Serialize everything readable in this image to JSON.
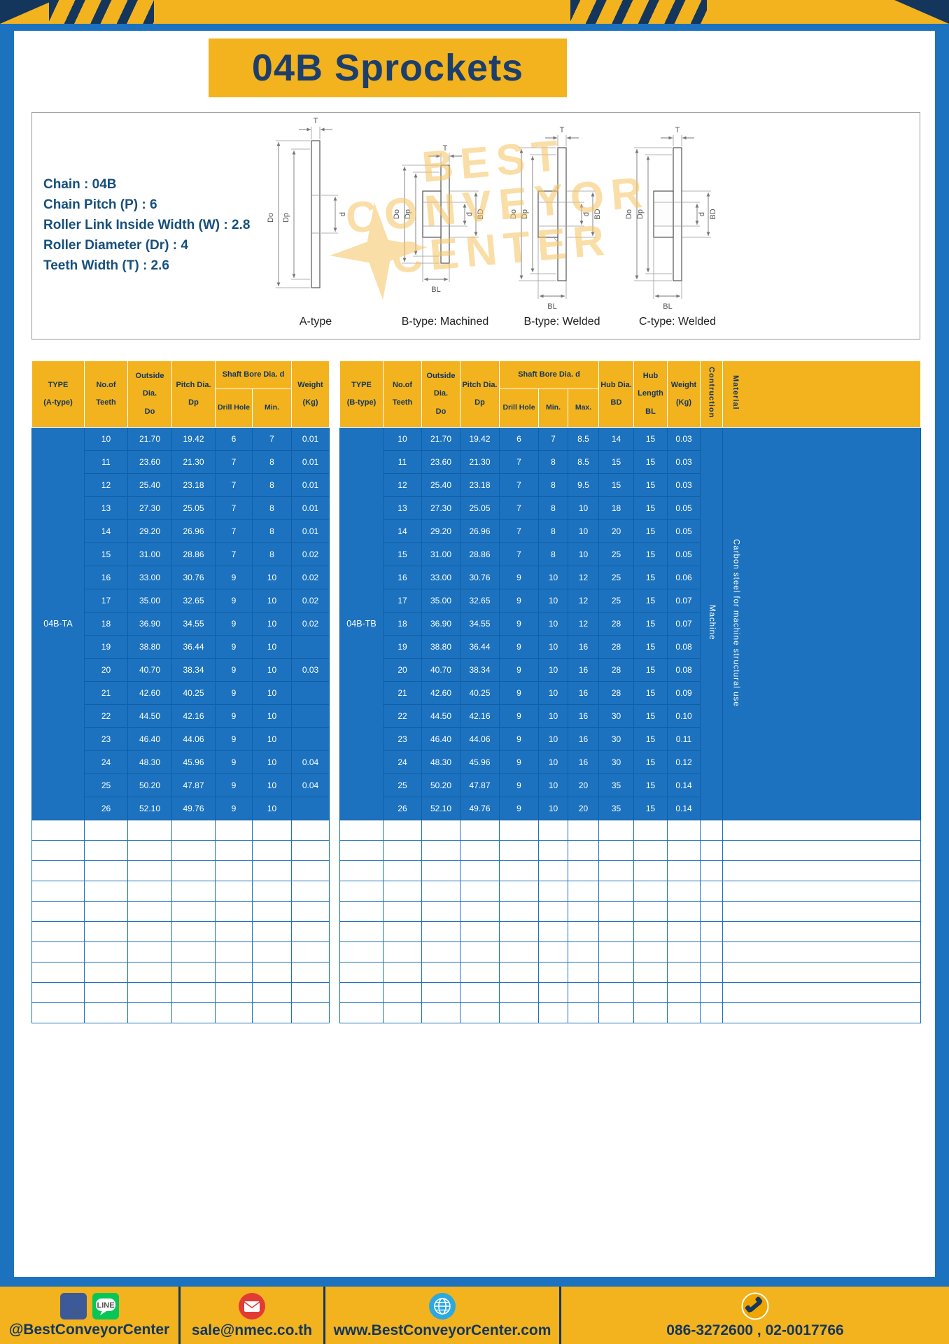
{
  "title": "04B Sprockets",
  "specs": {
    "lines": [
      "Chain : 04B",
      "Chain Pitch (P) : 6",
      "Roller Link Inside Width (W) : 2.8",
      "Roller Diameter (Dr) : 4",
      "Teeth Width (T) : 2.6"
    ]
  },
  "drawings": {
    "captions": [
      "A-type",
      "B-type: Machined",
      "B-type: Welded",
      "C-type: Welded"
    ],
    "dims": {
      "t": "T",
      "do": "Do",
      "dp": "Dp",
      "d": "d",
      "bd": "BD",
      "bl": "BL"
    },
    "watermark": {
      "lines": [
        "BEST",
        "CONVEYOR",
        "CENTER"
      ]
    }
  },
  "table_a": {
    "type_label": "04B-TA",
    "headers": {
      "type": "TYPE\n(A-type)",
      "teeth": "No.of\nTeeth",
      "outside": "Outside\nDia.\nDo",
      "pitch": "Pitch Dia.\nDp",
      "shaft_group": "Shaft Bore Dia. d",
      "drill": "Drill Hole",
      "min": "Min.",
      "weight": "Weight\n(Kg)"
    },
    "rows": [
      [
        "10",
        "21.70",
        "19.42",
        "6",
        "7",
        "0.01"
      ],
      [
        "11",
        "23.60",
        "21.30",
        "7",
        "8",
        "0.01"
      ],
      [
        "12",
        "25.40",
        "23.18",
        "7",
        "8",
        "0.01"
      ],
      [
        "13",
        "27.30",
        "25.05",
        "7",
        "8",
        "0.01"
      ],
      [
        "14",
        "29.20",
        "26.96",
        "7",
        "8",
        "0.01"
      ],
      [
        "15",
        "31.00",
        "28.86",
        "7",
        "8",
        "0.02"
      ],
      [
        "16",
        "33.00",
        "30.76",
        "9",
        "10",
        "0.02"
      ],
      [
        "17",
        "35.00",
        "32.65",
        "9",
        "10",
        "0.02"
      ],
      [
        "18",
        "36.90",
        "34.55",
        "9",
        "10",
        "0.02"
      ],
      [
        "19",
        "38.80",
        "36.44",
        "9",
        "10",
        ""
      ],
      [
        "20",
        "40.70",
        "38.34",
        "9",
        "10",
        "0.03"
      ],
      [
        "21",
        "42.60",
        "40.25",
        "9",
        "10",
        ""
      ],
      [
        "22",
        "44.50",
        "42.16",
        "9",
        "10",
        ""
      ],
      [
        "23",
        "46.40",
        "44.06",
        "9",
        "10",
        ""
      ],
      [
        "24",
        "48.30",
        "45.96",
        "9",
        "10",
        "0.04"
      ],
      [
        "25",
        "50.20",
        "47.87",
        "9",
        "10",
        "0.04"
      ],
      [
        "26",
        "52.10",
        "49.76",
        "9",
        "10",
        ""
      ]
    ],
    "empty_row_count": 10
  },
  "table_b": {
    "type_label": "04B-TB",
    "headers": {
      "type": "TYPE\n(B-type)",
      "teeth": "No.of\nTeeth",
      "outside": "Outside\nDia.\nDo",
      "pitch": "Pitch Dia.\nDp",
      "shaft_group": "Shaft Bore Dia. d",
      "drill": "Drill Hole",
      "min": "Min.",
      "max": "Max.",
      "hub_dia": "Hub Dia.\nBD",
      "hub_len": "Hub\nLength\nBL",
      "weight": "Weight\n(Kg)",
      "construction": "Contruction",
      "material": "Material"
    },
    "construction_value": "Machine",
    "material_value": "Carbon steel for machine structural use",
    "rows": [
      [
        "10",
        "21.70",
        "19.42",
        "6",
        "7",
        "8.5",
        "14",
        "15",
        "0.03"
      ],
      [
        "11",
        "23.60",
        "21.30",
        "7",
        "8",
        "8.5",
        "15",
        "15",
        "0.03"
      ],
      [
        "12",
        "25.40",
        "23.18",
        "7",
        "8",
        "9.5",
        "15",
        "15",
        "0.03"
      ],
      [
        "13",
        "27.30",
        "25.05",
        "7",
        "8",
        "10",
        "18",
        "15",
        "0.05"
      ],
      [
        "14",
        "29.20",
        "26.96",
        "7",
        "8",
        "10",
        "20",
        "15",
        "0.05"
      ],
      [
        "15",
        "31.00",
        "28.86",
        "7",
        "8",
        "10",
        "25",
        "15",
        "0.05"
      ],
      [
        "16",
        "33.00",
        "30.76",
        "9",
        "10",
        "12",
        "25",
        "15",
        "0.06"
      ],
      [
        "17",
        "35.00",
        "32.65",
        "9",
        "10",
        "12",
        "25",
        "15",
        "0.07"
      ],
      [
        "18",
        "36.90",
        "34.55",
        "9",
        "10",
        "12",
        "28",
        "15",
        "0.07"
      ],
      [
        "19",
        "38.80",
        "36.44",
        "9",
        "10",
        "16",
        "28",
        "15",
        "0.08"
      ],
      [
        "20",
        "40.70",
        "38.34",
        "9",
        "10",
        "16",
        "28",
        "15",
        "0.08"
      ],
      [
        "21",
        "42.60",
        "40.25",
        "9",
        "10",
        "16",
        "28",
        "15",
        "0.09"
      ],
      [
        "22",
        "44.50",
        "42.16",
        "9",
        "10",
        "16",
        "30",
        "15",
        "0.10"
      ],
      [
        "23",
        "46.40",
        "44.06",
        "9",
        "10",
        "16",
        "30",
        "15",
        "0.11"
      ],
      [
        "24",
        "48.30",
        "45.96",
        "9",
        "10",
        "16",
        "30",
        "15",
        "0.12"
      ],
      [
        "25",
        "50.20",
        "47.87",
        "9",
        "10",
        "20",
        "35",
        "15",
        "0.14"
      ],
      [
        "26",
        "52.10",
        "49.76",
        "9",
        "10",
        "20",
        "35",
        "15",
        "0.14"
      ]
    ],
    "empty_row_count": 10
  },
  "footer": {
    "social": "@BestConveyorCenter",
    "email": "sale@nmec.co.th",
    "website": "www.BestConveyorCenter.com",
    "phone": "086-3272600 , 02-0017766",
    "facebook_glyph": "f",
    "line_glyph": "LINE"
  },
  "colors": {
    "yellow": "#F2B31E",
    "navy": "#14365C",
    "table_blue": "#1C72BE",
    "title_navy": "#1D3E6B",
    "watermark": "#F6C460"
  }
}
